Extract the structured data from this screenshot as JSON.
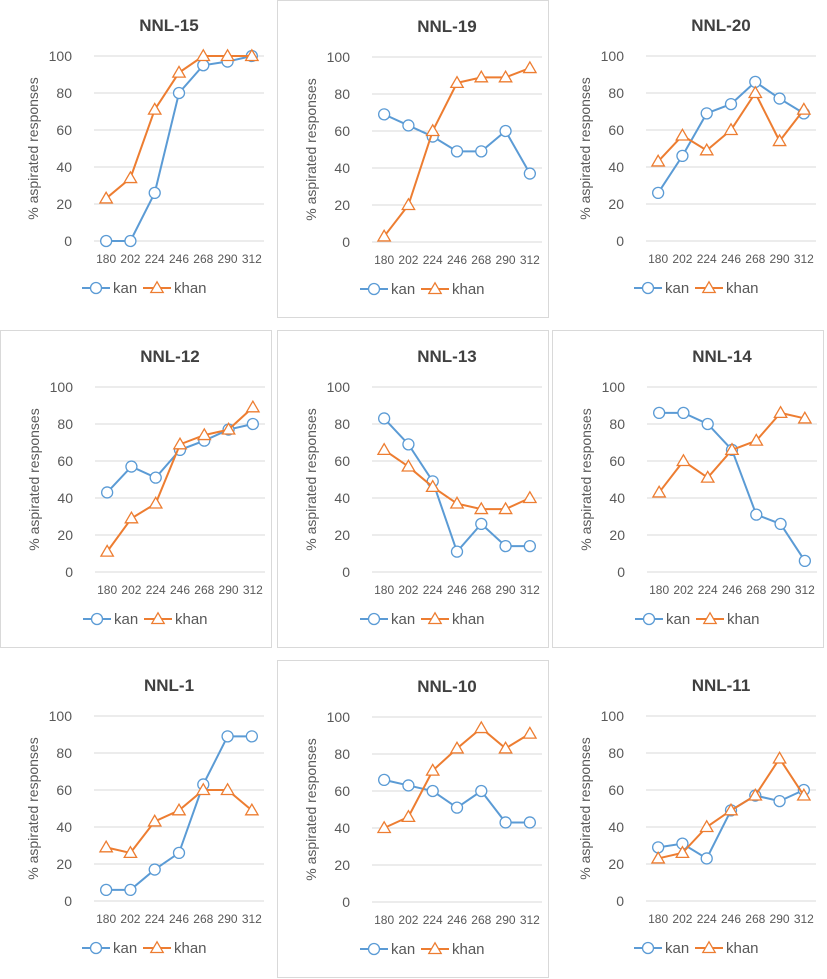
{
  "chart_data": [
    {
      "type": "line",
      "title": "NNL-15",
      "ylabel": "% aspirated responses",
      "categories": [
        "180",
        "202",
        "224",
        "246",
        "268",
        "290",
        "312"
      ],
      "ylim": [
        0,
        100
      ],
      "yticks": [
        0,
        20,
        40,
        60,
        80,
        100
      ],
      "series": [
        {
          "name": "kan",
          "values": [
            0,
            0,
            26,
            80,
            95,
            97,
            100
          ]
        },
        {
          "name": "khan",
          "values": [
            23,
            34,
            71,
            91,
            100,
            100,
            100
          ]
        }
      ]
    },
    {
      "type": "line",
      "title": "NNL-19",
      "ylabel": "% aspirated responses",
      "categories": [
        "180",
        "202",
        "224",
        "246",
        "268",
        "290",
        "312"
      ],
      "ylim": [
        0,
        100
      ],
      "yticks": [
        0,
        20,
        40,
        60,
        80,
        100
      ],
      "series": [
        {
          "name": "kan",
          "values": [
            69,
            63,
            57,
            49,
            49,
            60,
            37
          ]
        },
        {
          "name": "khan",
          "values": [
            3,
            20,
            60,
            86,
            89,
            89,
            94
          ]
        }
      ]
    },
    {
      "type": "line",
      "title": "NNL-20",
      "ylabel": "% aspirated responses",
      "categories": [
        "180",
        "202",
        "224",
        "246",
        "268",
        "290",
        "312"
      ],
      "ylim": [
        0,
        100
      ],
      "yticks": [
        0,
        20,
        40,
        60,
        80,
        100
      ],
      "series": [
        {
          "name": "kan",
          "values": [
            26,
            46,
            69,
            74,
            86,
            77,
            69
          ]
        },
        {
          "name": "khan",
          "values": [
            43,
            57,
            49,
            60,
            80,
            54,
            71
          ]
        }
      ]
    },
    {
      "type": "line",
      "title": "NNL-12",
      "ylabel": "% aspirated responses",
      "categories": [
        "180",
        "202",
        "224",
        "246",
        "268",
        "290",
        "312"
      ],
      "ylim": [
        0,
        100
      ],
      "yticks": [
        0,
        20,
        40,
        60,
        80,
        100
      ],
      "series": [
        {
          "name": "kan",
          "values": [
            43,
            57,
            51,
            66,
            71,
            77,
            80
          ]
        },
        {
          "name": "khan",
          "values": [
            11,
            29,
            37,
            69,
            74,
            77,
            89
          ]
        }
      ]
    },
    {
      "type": "line",
      "title": "NNL-13",
      "ylabel": "% aspirated responses",
      "categories": [
        "180",
        "202",
        "224",
        "246",
        "268",
        "290",
        "312"
      ],
      "ylim": [
        0,
        100
      ],
      "yticks": [
        0,
        20,
        40,
        60,
        80,
        100
      ],
      "series": [
        {
          "name": "kan",
          "values": [
            83,
            69,
            49,
            11,
            26,
            14,
            14
          ]
        },
        {
          "name": "khan",
          "values": [
            66,
            57,
            46,
            37,
            34,
            34,
            40
          ]
        }
      ]
    },
    {
      "type": "line",
      "title": "NNL-14",
      "ylabel": "% aspirated responses",
      "categories": [
        "180",
        "202",
        "224",
        "246",
        "268",
        "290",
        "312"
      ],
      "ylim": [
        0,
        100
      ],
      "yticks": [
        0,
        20,
        40,
        60,
        80,
        100
      ],
      "series": [
        {
          "name": "kan",
          "values": [
            86,
            86,
            80,
            66,
            31,
            26,
            6
          ]
        },
        {
          "name": "khan",
          "values": [
            43,
            60,
            51,
            66,
            71,
            86,
            83
          ]
        }
      ]
    },
    {
      "type": "line",
      "title": "NNL-1",
      "ylabel": "% aspirated responses",
      "categories": [
        "180",
        "202",
        "224",
        "246",
        "268",
        "290",
        "312"
      ],
      "ylim": [
        0,
        100
      ],
      "yticks": [
        0,
        20,
        40,
        60,
        80,
        100
      ],
      "series": [
        {
          "name": "kan",
          "values": [
            6,
            6,
            17,
            26,
            63,
            89,
            89
          ]
        },
        {
          "name": "khan",
          "values": [
            29,
            26,
            43,
            49,
            60,
            60,
            49
          ]
        }
      ]
    },
    {
      "type": "line",
      "title": "NNL-10",
      "ylabel": "% aspirated responses",
      "categories": [
        "180",
        "202",
        "224",
        "246",
        "268",
        "290",
        "312"
      ],
      "ylim": [
        0,
        100
      ],
      "yticks": [
        0,
        20,
        40,
        60,
        80,
        100
      ],
      "series": [
        {
          "name": "kan",
          "values": [
            66,
            63,
            60,
            51,
            60,
            43,
            43
          ]
        },
        {
          "name": "khan",
          "values": [
            40,
            46,
            71,
            83,
            94,
            83,
            91
          ]
        }
      ]
    },
    {
      "type": "line",
      "title": "NNL-11",
      "ylabel": "% aspirated responses",
      "categories": [
        "180",
        "202",
        "224",
        "246",
        "268",
        "290",
        "312"
      ],
      "ylim": [
        0,
        100
      ],
      "yticks": [
        0,
        20,
        40,
        60,
        80,
        100
      ],
      "series": [
        {
          "name": "kan",
          "values": [
            29,
            31,
            23,
            49,
            57,
            54,
            60
          ]
        },
        {
          "name": "khan",
          "values": [
            23,
            26,
            40,
            49,
            57,
            77,
            57
          ]
        }
      ]
    }
  ],
  "colors": {
    "kan": "#5b9bd5",
    "khan": "#ed7d31",
    "grid": "#d9d9d9",
    "text": "#595959",
    "title": "#404040"
  }
}
